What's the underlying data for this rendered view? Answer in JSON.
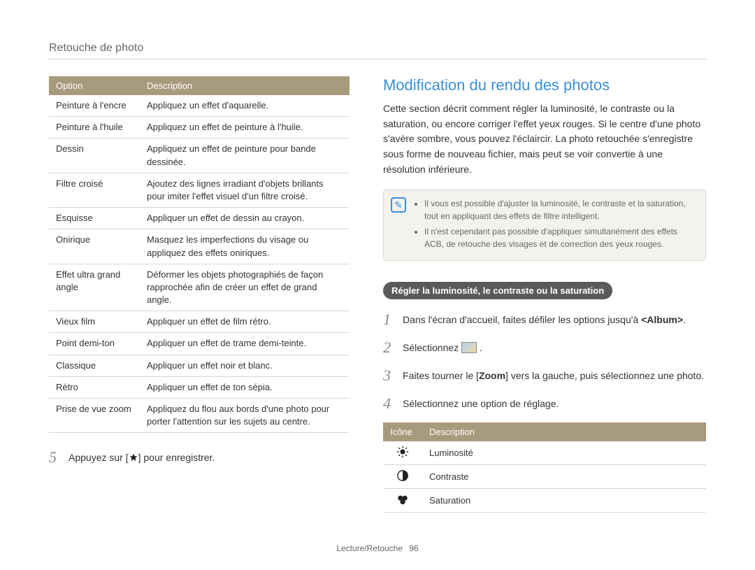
{
  "page": {
    "title": "Retouche de photo",
    "footer_section": "Lecture/Retouche",
    "footer_page": "96"
  },
  "colors": {
    "accent_blue": "#3b8fd6",
    "table_header": "#a89a7c",
    "note_bg": "#f3f2ed",
    "subhead_bg": "#5a5a5a"
  },
  "left": {
    "table": {
      "headers": {
        "opt": "Option",
        "desc": "Description"
      },
      "rows": [
        {
          "opt": "Peinture à l'encre",
          "desc": "Appliquez un effet d'aquarelle."
        },
        {
          "opt": "Peinture à l'huile",
          "desc": "Appliquez un effet de peinture à l'huile."
        },
        {
          "opt": "Dessin",
          "desc": "Appliquez un effet de peinture pour bande dessinée."
        },
        {
          "opt": "Filtre croisé",
          "desc": "Ajoutez des lignes irradiant d'objets brillants pour imiter l'effet visuel d'un filtre croisé."
        },
        {
          "opt": "Esquisse",
          "desc": "Appliquer un effet de dessin au crayon."
        },
        {
          "opt": "Onirique",
          "desc": "Masquez les imperfections du visage ou appliquez des effets oniriques."
        },
        {
          "opt": "Effet ultra grand angle",
          "desc": "Déformer les objets photographiés de façon rapprochée afin de créer un effet de grand angle."
        },
        {
          "opt": "Vieux film",
          "desc": "Appliquer un effet de film rétro."
        },
        {
          "opt": "Point demi-ton",
          "desc": "Appliquer un effet de trame demi-teinte."
        },
        {
          "opt": "Classique",
          "desc": "Appliquer un effet noir et blanc."
        },
        {
          "opt": "Rétro",
          "desc": "Appliquer un effet de ton sépia."
        },
        {
          "opt": "Prise de vue zoom",
          "desc": "Appliquez du flou aux bords d'une photo pour porter l'attention sur les sujets au centre."
        }
      ]
    },
    "step5": {
      "num": "5",
      "before": "Appuyez sur [",
      "after": "] pour enregistrer."
    }
  },
  "right": {
    "heading": "Modification du rendu des photos",
    "intro": "Cette section décrit comment régler la luminosité, le contraste ou la saturation, ou encore corriger l'effet yeux rouges. Si le centre d'une photo s'avère sombre, vous pouvez l'éclaircir. La photo retouchée s'enregistre sous forme de nouveau fichier, mais peut se voir convertie à une résolution inférieure.",
    "note": {
      "items": [
        "Il vous est possible d'ajuster la luminosité, le contraste et la saturation, tout en appliquant des effets de filtre intelligent.",
        "Il n'est cependant pas possible d'appliquer simultanément des effets ACB, de retouche des visages et de correction des yeux rouges."
      ]
    },
    "subhead": "Régler la luminosité, le contraste ou la saturation",
    "steps": [
      {
        "num": "1",
        "html": "Dans l'écran d'accueil, faites défiler les options jusqu'à <b>&lt;Album&gt;</b>."
      },
      {
        "num": "2",
        "html": "Sélectionnez {THUMB} ."
      },
      {
        "num": "3",
        "html": "Faites tourner le [<b>Zoom</b>] vers la gauche, puis sélectionnez une photo."
      },
      {
        "num": "4",
        "html": "Sélectionnez une option de réglage."
      }
    ],
    "icon_table": {
      "headers": {
        "icon": "Icône",
        "desc": "Description"
      },
      "rows": [
        {
          "icon": "brightness",
          "desc": "Luminosité"
        },
        {
          "icon": "contrast",
          "desc": "Contraste"
        },
        {
          "icon": "saturation",
          "desc": "Saturation"
        }
      ]
    }
  }
}
